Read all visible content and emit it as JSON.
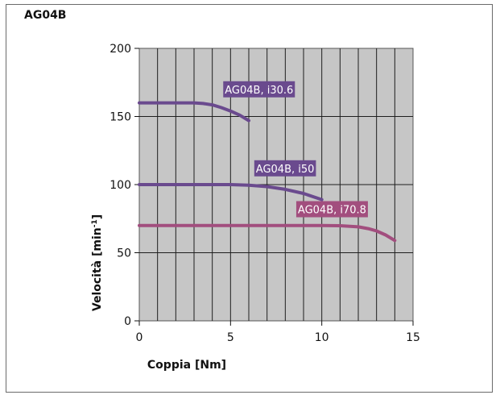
{
  "heading": "AG04B",
  "chart_data": {
    "type": "line",
    "title": "",
    "xlabel": "Coppia [Nm]",
    "ylabel_main": "Velocità [min",
    "ylabel_sup": "-1",
    "ylabel_end": "]",
    "xlim": [
      0,
      15
    ],
    "ylim": [
      0,
      200
    ],
    "xticks": [
      0,
      5,
      10,
      15
    ],
    "yticks": [
      0,
      50,
      100,
      150,
      200
    ],
    "grid": true,
    "plot_background": "#c6c6c6",
    "series": [
      {
        "name": "AG04B, i30.6",
        "color": "#6a4a8e",
        "points": [
          [
            0,
            160
          ],
          [
            1,
            160
          ],
          [
            2,
            160
          ],
          [
            3,
            160
          ],
          [
            3.5,
            159.5
          ],
          [
            4,
            158.5
          ],
          [
            4.5,
            156.5
          ],
          [
            5,
            154
          ],
          [
            5.5,
            151
          ],
          [
            6,
            147
          ]
        ],
        "label_anchor": [
          4.6,
          167
        ]
      },
      {
        "name": "AG04B, i50",
        "color": "#6a4a8e",
        "points": [
          [
            0,
            100
          ],
          [
            1,
            100
          ],
          [
            2,
            100
          ],
          [
            3,
            100
          ],
          [
            4,
            100
          ],
          [
            5,
            100
          ],
          [
            6,
            99.5
          ],
          [
            7,
            98.5
          ],
          [
            8,
            96.5
          ],
          [
            9,
            93.5
          ],
          [
            10,
            89
          ]
        ],
        "label_anchor": [
          6.3,
          109
        ]
      },
      {
        "name": "AG04B, i70.8",
        "color": "#a24e7e",
        "points": [
          [
            0,
            70
          ],
          [
            2,
            70
          ],
          [
            4,
            70
          ],
          [
            6,
            70
          ],
          [
            8,
            70
          ],
          [
            10,
            70
          ],
          [
            11,
            69.8
          ],
          [
            12,
            69
          ],
          [
            12.6,
            67.5
          ],
          [
            13,
            66
          ],
          [
            13.5,
            63
          ],
          [
            14,
            59
          ]
        ],
        "label_anchor": [
          8.6,
          79
        ]
      }
    ]
  }
}
